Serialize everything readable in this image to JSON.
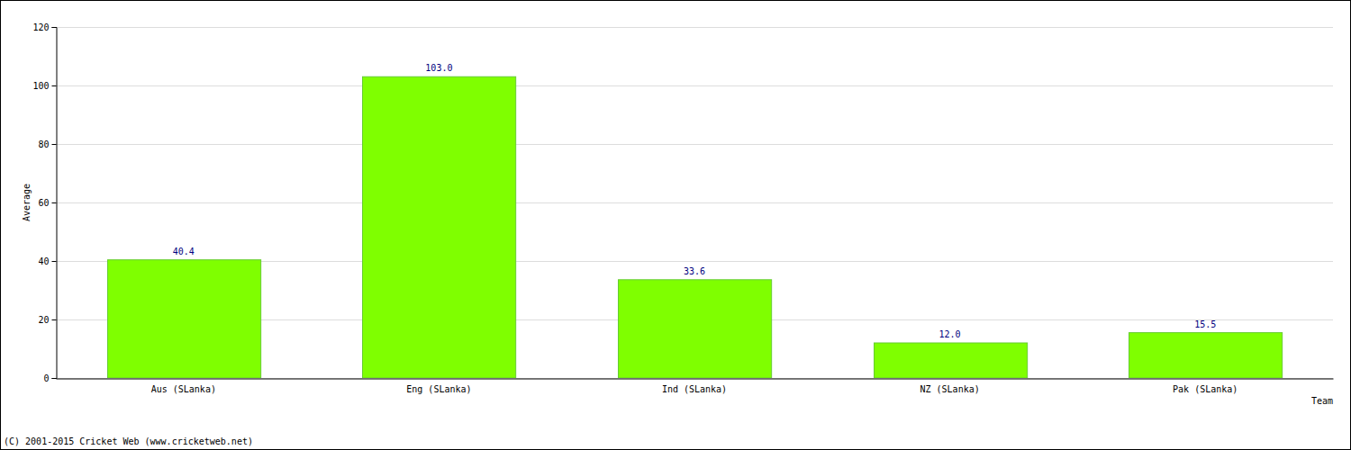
{
  "chart_data": {
    "type": "bar",
    "categories": [
      "Aus (SLanka)",
      "Eng (SLanka)",
      "Ind (SLanka)",
      "NZ (SLanka)",
      "Pak (SLanka)"
    ],
    "values": [
      40.4,
      103.0,
      33.6,
      12.0,
      15.5
    ],
    "value_labels": [
      "40.4",
      "103.0",
      "33.6",
      "12.0",
      "15.5"
    ],
    "data_labels": true,
    "color": "#7fff00",
    "x_label": "Team",
    "y_label": "Average",
    "annotations": [
      "(C) 2001-2015 Cricket Web (www.cricketweb.net)"
    ],
    "ylim": [
      0,
      120
    ],
    "yticks": [
      0,
      20,
      40,
      60,
      80,
      100,
      120
    ],
    "grid": true
  }
}
